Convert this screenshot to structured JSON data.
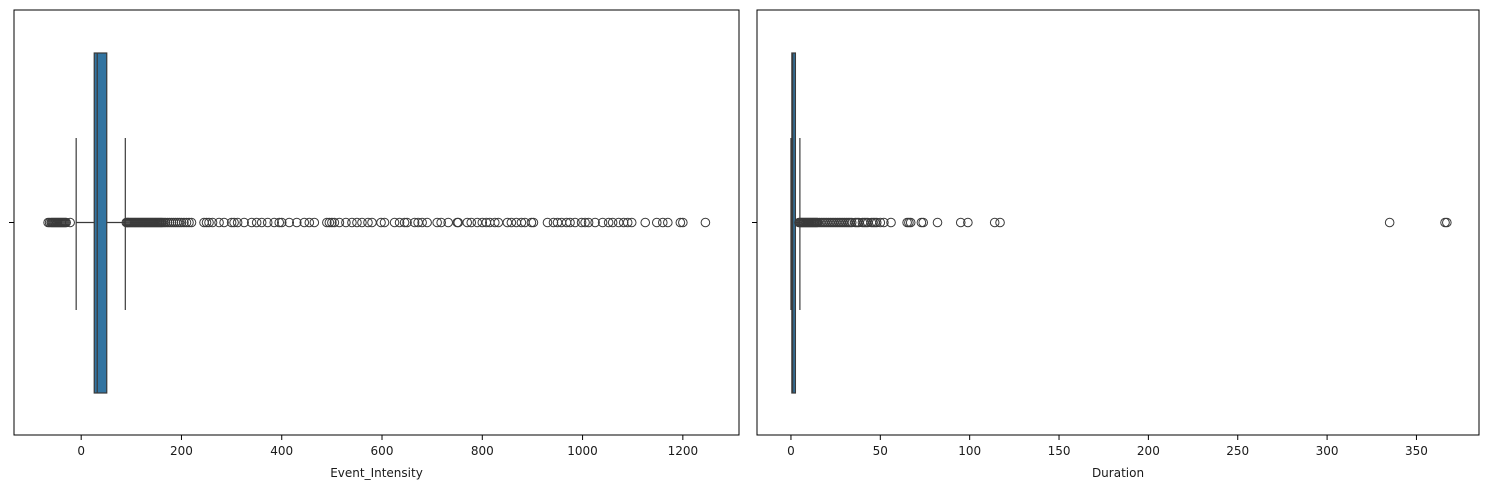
{
  "colors": {
    "box_fill_left": "#3274a1",
    "box_fill_right": "#3274a1",
    "box_edge": "#3a3a3a",
    "axes_edge": "#000000",
    "outlier_edge": "#3a3a3a",
    "background": "#ffffff"
  },
  "chart_data": [
    {
      "type": "box",
      "orientation": "horizontal",
      "xlabel": "Event_Intensity",
      "ylabel": "",
      "xlim": [
        -134,
        1312
      ],
      "xticks": [
        0,
        200,
        400,
        600,
        800,
        1000,
        1200
      ],
      "xtick_labels": [
        "0",
        "200",
        "400",
        "600",
        "800",
        "1000",
        "1200"
      ],
      "grid": false,
      "stats": {
        "whisker_low": -10,
        "q1": 26,
        "median": 32,
        "q3": 51,
        "whisker_high": 88
      },
      "outliers": [
        -66,
        -63,
        -60,
        -58,
        -56,
        -54,
        -52,
        -50,
        -48,
        -46,
        -44,
        -42,
        -40,
        -38,
        -36,
        -34,
        -32,
        -30,
        -22,
        90,
        92,
        94,
        96,
        98,
        100,
        102,
        104,
        106,
        108,
        110,
        112,
        114,
        116,
        118,
        120,
        122,
        124,
        126,
        128,
        130,
        132,
        134,
        136,
        138,
        140,
        142,
        144,
        146,
        148,
        150,
        152,
        154,
        156,
        158,
        160,
        162,
        165,
        168,
        172,
        176,
        180,
        184,
        188,
        192,
        196,
        200,
        205,
        210,
        215,
        220,
        245,
        250,
        255,
        262,
        275,
        285,
        300,
        305,
        312,
        325,
        340,
        350,
        360,
        372,
        385,
        395,
        400,
        415,
        430,
        445,
        455,
        465,
        490,
        495,
        500,
        505,
        515,
        528,
        540,
        550,
        560,
        572,
        580,
        598,
        605,
        625,
        635,
        645,
        650,
        665,
        672,
        680,
        690,
        710,
        718,
        732,
        750,
        752,
        770,
        778,
        790,
        800,
        808,
        815,
        825,
        832,
        850,
        858,
        868,
        878,
        885,
        898,
        902,
        930,
        942,
        950,
        958,
        968,
        975,
        985,
        998,
        1005,
        1012,
        1025,
        1040,
        1052,
        1060,
        1072,
        1082,
        1090,
        1098,
        1125,
        1148,
        1160,
        1170,
        1195,
        1200,
        1245
      ]
    },
    {
      "type": "box",
      "orientation": "horizontal",
      "xlabel": "Duration",
      "ylabel": "",
      "xlim": [
        -19,
        385
      ],
      "xticks": [
        0,
        50,
        100,
        150,
        200,
        250,
        300,
        350
      ],
      "xtick_labels": [
        "0",
        "50",
        "100",
        "150",
        "200",
        "250",
        "300",
        "350"
      ],
      "grid": false,
      "stats": {
        "whisker_low": 0,
        "q1": 0.5,
        "median": 1,
        "q3": 2.5,
        "whisker_high": 5
      },
      "outliers": [
        4.5,
        5,
        5.5,
        6,
        6.5,
        7,
        7.5,
        8,
        8.5,
        9,
        9.5,
        10,
        10.5,
        11,
        11.5,
        12,
        12.5,
        13,
        13.5,
        14,
        14.5,
        15,
        16,
        17,
        18,
        19,
        20,
        21,
        22,
        23,
        24,
        25,
        26,
        27,
        28,
        29,
        30,
        31,
        32,
        33,
        34,
        36,
        37,
        38,
        40,
        41,
        42,
        43,
        45,
        46,
        47,
        48,
        50,
        52,
        56,
        65,
        66,
        67,
        73,
        74,
        82,
        95,
        99,
        114,
        117,
        335,
        366,
        367
      ]
    }
  ]
}
